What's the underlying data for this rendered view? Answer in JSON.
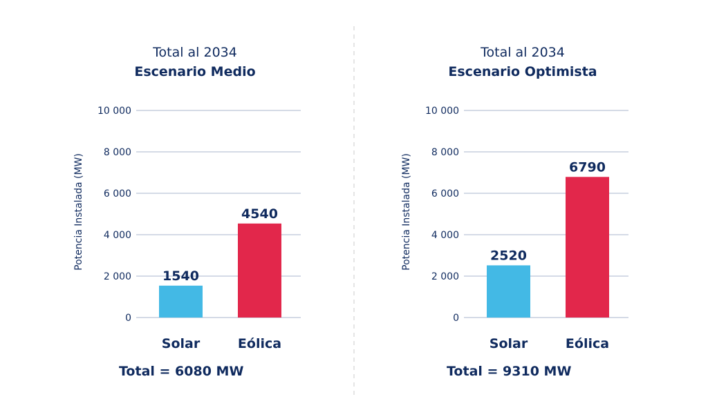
{
  "colors": {
    "text": "#0f2a5e",
    "solar": "#43b9e5",
    "eolica": "#e2274b",
    "grid": "#aab6cc",
    "divider": "#c8c8c8"
  },
  "chart_data": [
    {
      "type": "bar",
      "title": "Total al 2034",
      "subtitle": "Escenario Medio",
      "ylabel": "Potencia Instalada (MW)",
      "xlabel": "",
      "ylim": [
        0,
        10000
      ],
      "yticks": [
        0,
        2000,
        4000,
        6000,
        8000,
        10000
      ],
      "ytick_labels": [
        "0",
        "2 000",
        "4 000",
        "6 000",
        "8 000",
        "10 000"
      ],
      "grid": true,
      "categories": [
        "Solar",
        "Eólica"
      ],
      "values": [
        1540,
        4540
      ],
      "data_labels": [
        "1540",
        "4540"
      ],
      "total": "Total = 6080 MW"
    },
    {
      "type": "bar",
      "title": "Total al 2034",
      "subtitle": "Escenario Optimista",
      "ylabel": "Potencia Instalada (MW)",
      "xlabel": "",
      "ylim": [
        0,
        10000
      ],
      "yticks": [
        0,
        2000,
        4000,
        6000,
        8000,
        10000
      ],
      "ytick_labels": [
        "0",
        "2 000",
        "4 000",
        "6 000",
        "8 000",
        "10 000"
      ],
      "grid": true,
      "categories": [
        "Solar",
        "Eólica"
      ],
      "values": [
        2520,
        6790
      ],
      "data_labels": [
        "2520",
        "6790"
      ],
      "total": "Total = 9310 MW"
    }
  ]
}
